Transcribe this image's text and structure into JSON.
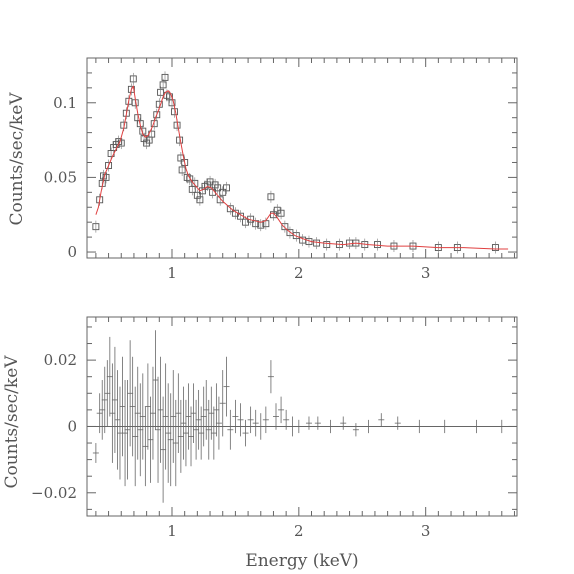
{
  "chart_data": [
    {
      "type": "scatter",
      "title": "",
      "xlabel": "",
      "ylabel": "Counts/sec/keV",
      "xlim": [
        0.33,
        3.72
      ],
      "ylim": [
        -0.004,
        0.13
      ],
      "xtick_labels": [
        "1",
        "2",
        "3"
      ],
      "xticks": [
        1,
        2,
        3
      ],
      "ytick_labels": [
        "0",
        "0.05",
        "0.1"
      ],
      "yticks": [
        0,
        0.05,
        0.1
      ],
      "grid": false,
      "series": [
        {
          "kind": "data-squares",
          "points": [
            [
              0.4,
              0.017
            ],
            [
              0.43,
              0.035
            ],
            [
              0.45,
              0.046
            ],
            [
              0.46,
              0.051
            ],
            [
              0.48,
              0.05
            ],
            [
              0.5,
              0.058
            ],
            [
              0.52,
              0.066
            ],
            [
              0.54,
              0.07
            ],
            [
              0.56,
              0.072
            ],
            [
              0.58,
              0.074
            ],
            [
              0.6,
              0.073
            ],
            [
              0.62,
              0.085
            ],
            [
              0.64,
              0.093
            ],
            [
              0.66,
              0.101
            ],
            [
              0.68,
              0.109
            ],
            [
              0.695,
              0.116
            ],
            [
              0.71,
              0.1
            ],
            [
              0.73,
              0.09
            ],
            [
              0.75,
              0.086
            ],
            [
              0.77,
              0.081
            ],
            [
              0.78,
              0.076
            ],
            [
              0.8,
              0.073
            ],
            [
              0.82,
              0.075
            ],
            [
              0.84,
              0.079
            ],
            [
              0.86,
              0.086
            ],
            [
              0.88,
              0.092
            ],
            [
              0.9,
              0.099
            ],
            [
              0.91,
              0.107
            ],
            [
              0.93,
              0.112
            ],
            [
              0.945,
              0.117
            ],
            [
              0.96,
              0.105
            ],
            [
              0.98,
              0.104
            ],
            [
              1.0,
              0.1
            ],
            [
              1.02,
              0.094
            ],
            [
              1.04,
              0.085
            ],
            [
              1.06,
              0.075
            ],
            [
              1.07,
              0.063
            ],
            [
              1.08,
              0.055
            ],
            [
              1.1,
              0.06
            ],
            [
              1.12,
              0.05
            ],
            [
              1.14,
              0.049
            ],
            [
              1.16,
              0.042
            ],
            [
              1.18,
              0.046
            ],
            [
              1.2,
              0.038
            ],
            [
              1.22,
              0.035
            ],
            [
              1.24,
              0.041
            ],
            [
              1.26,
              0.044
            ],
            [
              1.28,
              0.045
            ],
            [
              1.3,
              0.047
            ],
            [
              1.32,
              0.04
            ],
            [
              1.34,
              0.045
            ],
            [
              1.36,
              0.043
            ],
            [
              1.38,
              0.035
            ],
            [
              1.4,
              0.04
            ],
            [
              1.43,
              0.043
            ],
            [
              1.46,
              0.029
            ],
            [
              1.5,
              0.026
            ],
            [
              1.54,
              0.024
            ],
            [
              1.58,
              0.02
            ],
            [
              1.62,
              0.022
            ],
            [
              1.66,
              0.019
            ],
            [
              1.7,
              0.018
            ],
            [
              1.74,
              0.019
            ],
            [
              1.78,
              0.037
            ],
            [
              1.8,
              0.025
            ],
            [
              1.83,
              0.028
            ],
            [
              1.86,
              0.026
            ],
            [
              1.89,
              0.017
            ],
            [
              1.93,
              0.013
            ],
            [
              1.98,
              0.011
            ],
            [
              2.03,
              0.008
            ],
            [
              2.08,
              0.007
            ],
            [
              2.14,
              0.006
            ],
            [
              2.22,
              0.005
            ],
            [
              2.32,
              0.005
            ],
            [
              2.4,
              0.006
            ],
            [
              2.45,
              0.006
            ],
            [
              2.52,
              0.005
            ],
            [
              2.62,
              0.005
            ],
            [
              2.75,
              0.004
            ],
            [
              2.9,
              0.004
            ],
            [
              3.1,
              0.003
            ],
            [
              3.25,
              0.003
            ],
            [
              3.55,
              0.003
            ]
          ]
        },
        {
          "kind": "model-line",
          "color": "#e04040",
          "points": [
            [
              0.4,
              0.025
            ],
            [
              0.42,
              0.03
            ],
            [
              0.44,
              0.04
            ],
            [
              0.47,
              0.052
            ],
            [
              0.5,
              0.058
            ],
            [
              0.53,
              0.064
            ],
            [
              0.56,
              0.069
            ],
            [
              0.59,
              0.074
            ],
            [
              0.62,
              0.083
            ],
            [
              0.64,
              0.092
            ],
            [
              0.66,
              0.102
            ],
            [
              0.68,
              0.109
            ],
            [
              0.695,
              0.111
            ],
            [
              0.71,
              0.103
            ],
            [
              0.73,
              0.093
            ],
            [
              0.75,
              0.085
            ],
            [
              0.77,
              0.079
            ],
            [
              0.79,
              0.077
            ],
            [
              0.81,
              0.078
            ],
            [
              0.83,
              0.081
            ],
            [
              0.85,
              0.085
            ],
            [
              0.87,
              0.09
            ],
            [
              0.89,
              0.094
            ],
            [
              0.91,
              0.099
            ],
            [
              0.93,
              0.104
            ],
            [
              0.95,
              0.107
            ],
            [
              0.97,
              0.108
            ],
            [
              0.99,
              0.106
            ],
            [
              1.01,
              0.101
            ],
            [
              1.03,
              0.093
            ],
            [
              1.05,
              0.083
            ],
            [
              1.07,
              0.073
            ],
            [
              1.09,
              0.064
            ],
            [
              1.11,
              0.056
            ],
            [
              1.13,
              0.051
            ],
            [
              1.16,
              0.047
            ],
            [
              1.19,
              0.044
            ],
            [
              1.22,
              0.041
            ],
            [
              1.25,
              0.042
            ],
            [
              1.28,
              0.044
            ],
            [
              1.31,
              0.043
            ],
            [
              1.34,
              0.04
            ],
            [
              1.37,
              0.037
            ],
            [
              1.4,
              0.034
            ],
            [
              1.44,
              0.031
            ],
            [
              1.48,
              0.028
            ],
            [
              1.52,
              0.026
            ],
            [
              1.56,
              0.024
            ],
            [
              1.6,
              0.022
            ],
            [
              1.65,
              0.021
            ],
            [
              1.7,
              0.02
            ],
            [
              1.74,
              0.021
            ],
            [
              1.78,
              0.026
            ],
            [
              1.8,
              0.026
            ],
            [
              1.83,
              0.023
            ],
            [
              1.87,
              0.018
            ],
            [
              1.92,
              0.014
            ],
            [
              1.97,
              0.011
            ],
            [
              2.03,
              0.009
            ],
            [
              2.1,
              0.007
            ],
            [
              2.2,
              0.006
            ],
            [
              2.35,
              0.005
            ],
            [
              2.45,
              0.006
            ],
            [
              2.55,
              0.005
            ],
            [
              2.7,
              0.004
            ],
            [
              2.9,
              0.004
            ],
            [
              3.1,
              0.003
            ],
            [
              3.3,
              0.003
            ],
            [
              3.55,
              0.002
            ],
            [
              3.65,
              0.002
            ]
          ]
        }
      ]
    },
    {
      "type": "scatter",
      "title": "",
      "xlabel": "Energy (keV)",
      "ylabel": "Counts/sec/keV",
      "xlim": [
        0.33,
        3.72
      ],
      "ylim": [
        -0.027,
        0.033
      ],
      "xtick_labels": [
        "1",
        "2",
        "3"
      ],
      "xticks": [
        1,
        2,
        3
      ],
      "ytick_labels": [
        "−0.02",
        "0",
        "0.02"
      ],
      "yticks": [
        -0.02,
        0,
        0.02
      ],
      "grid": false,
      "zero_line": true,
      "series": [
        {
          "kind": "residuals-with-errorbars",
          "points": [
            [
              0.4,
              -0.008,
              0.003
            ],
            [
              0.43,
              0.004,
              0.006
            ],
            [
              0.45,
              0.005,
              0.009
            ],
            [
              0.47,
              0.008,
              0.01
            ],
            [
              0.49,
              0.01,
              0.01
            ],
            [
              0.51,
              0.015,
              0.012
            ],
            [
              0.53,
              0.004,
              0.015
            ],
            [
              0.55,
              0.008,
              0.016
            ],
            [
              0.57,
              0.002,
              0.015
            ],
            [
              0.59,
              -0.002,
              0.014
            ],
            [
              0.61,
              0.006,
              0.015
            ],
            [
              0.63,
              -0.002,
              0.016
            ],
            [
              0.65,
              -0.001,
              0.015
            ],
            [
              0.67,
              0.01,
              0.016
            ],
            [
              0.69,
              0.006,
              0.015
            ],
            [
              0.71,
              -0.003,
              0.015
            ],
            [
              0.73,
              0.004,
              0.014
            ],
            [
              0.75,
              -0.001,
              0.014
            ],
            [
              0.77,
              0.003,
              0.013
            ],
            [
              0.79,
              -0.006,
              0.012
            ],
            [
              0.81,
              0.006,
              0.013
            ],
            [
              0.83,
              -0.004,
              0.013
            ],
            [
              0.85,
              0.004,
              0.014
            ],
            [
              0.87,
              0.014,
              0.015
            ],
            [
              0.89,
              -0.001,
              0.016
            ],
            [
              0.91,
              0.005,
              0.016
            ],
            [
              0.93,
              -0.007,
              0.016
            ],
            [
              0.95,
              0.003,
              0.016
            ],
            [
              0.97,
              -0.002,
              0.015
            ],
            [
              0.99,
              -0.004,
              0.014
            ],
            [
              1.01,
              0.003,
              0.014
            ],
            [
              1.03,
              -0.005,
              0.013
            ],
            [
              1.05,
              0.004,
              0.012
            ],
            [
              1.07,
              -0.003,
              0.011
            ],
            [
              1.09,
              0.001,
              0.011
            ],
            [
              1.11,
              -0.002,
              0.01
            ],
            [
              1.13,
              0.003,
              0.01
            ],
            [
              1.15,
              -0.003,
              0.009
            ],
            [
              1.17,
              0.004,
              0.009
            ],
            [
              1.19,
              -0.001,
              0.009
            ],
            [
              1.21,
              0.002,
              0.009
            ],
            [
              1.23,
              -0.002,
              0.008
            ],
            [
              1.25,
              0.003,
              0.009
            ],
            [
              1.27,
              0.005,
              0.009
            ],
            [
              1.29,
              -0.001,
              0.009
            ],
            [
              1.31,
              0.004,
              0.008
            ],
            [
              1.33,
              -0.002,
              0.008
            ],
            [
              1.35,
              0.005,
              0.008
            ],
            [
              1.37,
              0.001,
              0.008
            ],
            [
              1.4,
              0.007,
              0.01
            ],
            [
              1.43,
              0.012,
              0.009
            ],
            [
              1.46,
              -0.001,
              0.006
            ],
            [
              1.5,
              0.003,
              0.005
            ],
            [
              1.54,
              0.002,
              0.005
            ],
            [
              1.58,
              -0.002,
              0.004
            ],
            [
              1.62,
              0.002,
              0.004
            ],
            [
              1.66,
              0.001,
              0.004
            ],
            [
              1.7,
              0.0,
              0.004
            ],
            [
              1.74,
              0.002,
              0.004
            ],
            [
              1.78,
              0.015,
              0.005
            ],
            [
              1.82,
              0.003,
              0.004
            ],
            [
              1.86,
              0.005,
              0.004
            ],
            [
              1.9,
              0.002,
              0.003
            ],
            [
              1.95,
              0.0,
              0.003
            ],
            [
              2.0,
              0.0,
              0.002
            ],
            [
              2.08,
              0.001,
              0.002
            ],
            [
              2.15,
              0.001,
              0.002
            ],
            [
              2.25,
              0.0,
              0.002
            ],
            [
              2.35,
              0.001,
              0.002
            ],
            [
              2.45,
              -0.001,
              0.002
            ],
            [
              2.55,
              0.0,
              0.002
            ],
            [
              2.65,
              0.002,
              0.002
            ],
            [
              2.78,
              0.001,
              0.002
            ],
            [
              2.95,
              0.0,
              0.002
            ],
            [
              3.15,
              0.0,
              0.002
            ],
            [
              3.4,
              0.0,
              0.002
            ],
            [
              3.6,
              0.0,
              0.002
            ]
          ]
        }
      ]
    }
  ]
}
